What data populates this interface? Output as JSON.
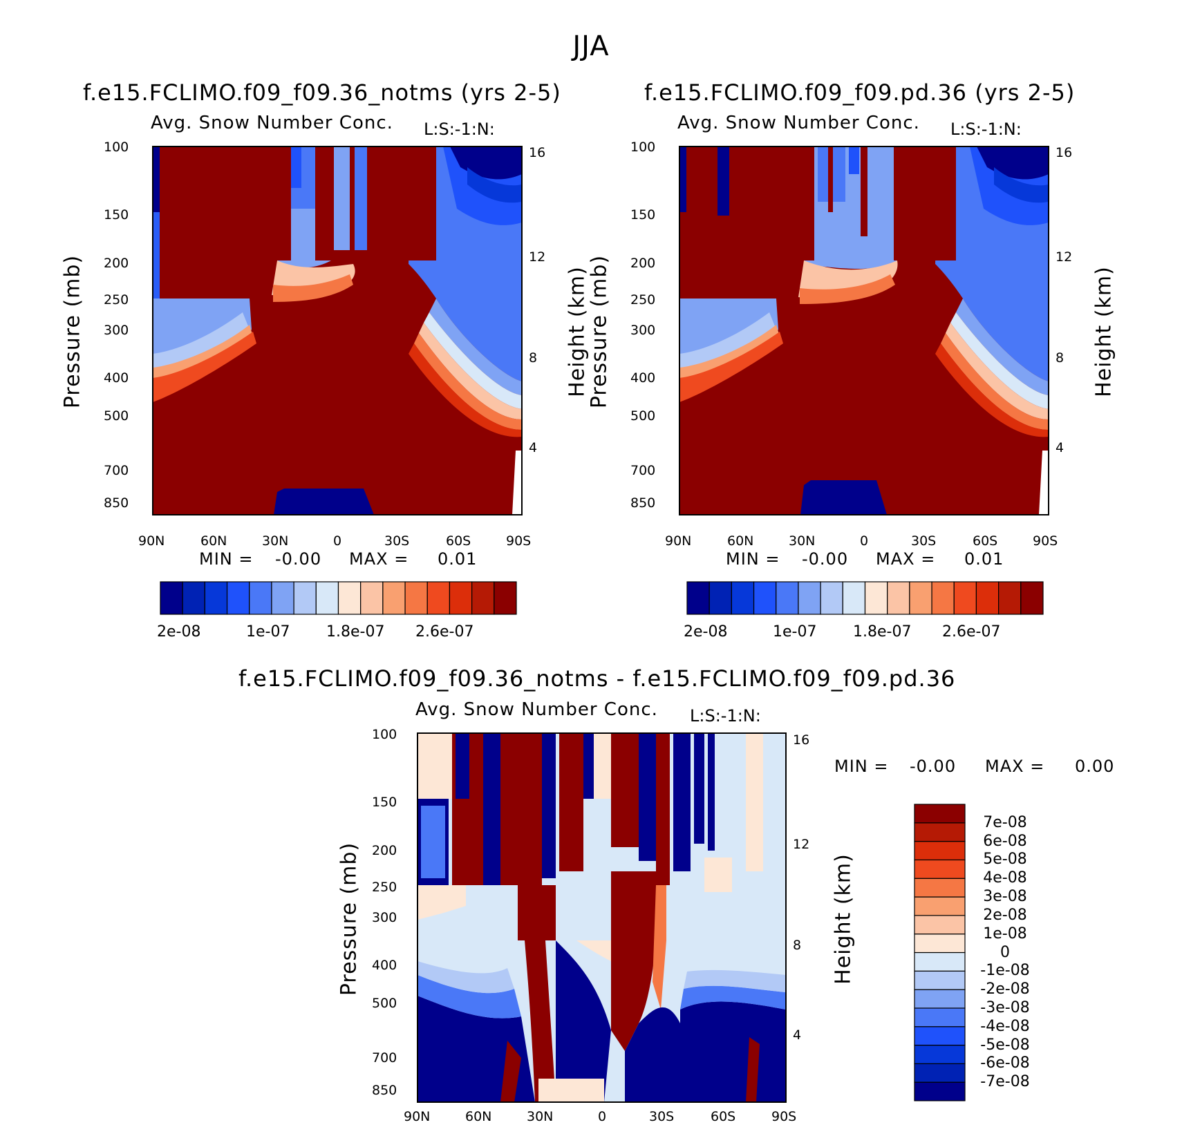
{
  "figure": {
    "season": "JJA",
    "field_label": "Avg. Snow Number Conc.",
    "level_label": "L:S:-1:N:",
    "ylabel_left": "Pressure (mb)",
    "ylabel_right": "Height (km)",
    "min_label": "MIN =",
    "max_label": "MAX ="
  },
  "colors": {
    "abs_scale": [
      "#00008b",
      "#0022b4",
      "#0638d9",
      "#1f52fb",
      "#4a78f7",
      "#7fa3f4",
      "#b2c9f6",
      "#d8e8f8",
      "#fde7d6",
      "#fbc4a6",
      "#f9a070",
      "#f57744",
      "#ef4a1f",
      "#dc2e0a",
      "#b51a05",
      "#8b0000"
    ],
    "diff_scale": [
      "#00008b",
      "#0022b4",
      "#0638d9",
      "#1f52fb",
      "#4a78f7",
      "#7fa3f4",
      "#b2c9f6",
      "#d8e8f8",
      "#fde7d6",
      "#fbc4a6",
      "#f9a070",
      "#f57744",
      "#ef4a1f",
      "#dc2e0a",
      "#b51a05",
      "#8b0000"
    ]
  },
  "panels": {
    "left": {
      "title": "f.e15.FCLIMO.f09_f09.36_notms (yrs 2-5)",
      "min": "-0.00",
      "max": "0.01"
    },
    "right": {
      "title": "f.e15.FCLIMO.f09_f09.pd.36 (yrs 2-5)",
      "min": "-0.00",
      "max": "0.01"
    },
    "diff": {
      "title": "f.e15.FCLIMO.f09_f09.36_notms - f.e15.FCLIMO.f09_f09.pd.36",
      "min": "-0.00",
      "max": "0.00"
    }
  },
  "chart_data": [
    {
      "type": "heatmap",
      "title": "f.e15.FCLIMO.f09_f09.36_notms (yrs 2-5)",
      "subtitle": "Avg. Snow Number Conc.",
      "x_ticks": [
        "90N",
        "60N",
        "30N",
        "0",
        "30S",
        "60S",
        "90S"
      ],
      "y_ticks_pressure_mb": [
        100,
        150,
        200,
        250,
        300,
        400,
        500,
        700,
        850
      ],
      "y_ticks_height_km": [
        16,
        12,
        8,
        4
      ],
      "colorbar_labels": [
        "2e-08",
        "1e-07",
        "1.8e-07",
        "2.6e-07"
      ],
      "min": "-0.00",
      "max": "0.01"
    },
    {
      "type": "heatmap",
      "title": "f.e15.FCLIMO.f09_f09.pd.36 (yrs 2-5)",
      "subtitle": "Avg. Snow Number Conc.",
      "x_ticks": [
        "90N",
        "60N",
        "30N",
        "0",
        "30S",
        "60S",
        "90S"
      ],
      "y_ticks_pressure_mb": [
        100,
        150,
        200,
        250,
        300,
        400,
        500,
        700,
        850
      ],
      "y_ticks_height_km": [
        16,
        12,
        8,
        4
      ],
      "colorbar_labels": [
        "2e-08",
        "1e-07",
        "1.8e-07",
        "2.6e-07"
      ],
      "min": "-0.00",
      "max": "0.01"
    },
    {
      "type": "heatmap",
      "title": "f.e15.FCLIMO.f09_f09.36_notms - f.e15.FCLIMO.f09_f09.pd.36",
      "subtitle": "Avg. Snow Number Conc.",
      "x_ticks": [
        "90N",
        "60N",
        "30N",
        "0",
        "30S",
        "60S",
        "90S"
      ],
      "y_ticks_pressure_mb": [
        100,
        150,
        200,
        250,
        300,
        400,
        500,
        700,
        850
      ],
      "y_ticks_height_km": [
        16,
        12,
        8,
        4
      ],
      "colorbar_labels": [
        "7e-08",
        "6e-08",
        "5e-08",
        "4e-08",
        "3e-08",
        "2e-08",
        "1e-08",
        "0",
        "-1e-08",
        "-2e-08",
        "-3e-08",
        "-4e-08",
        "-5e-08",
        "-6e-08",
        "-7e-08"
      ],
      "min": "-0.00",
      "max": "0.00"
    }
  ]
}
